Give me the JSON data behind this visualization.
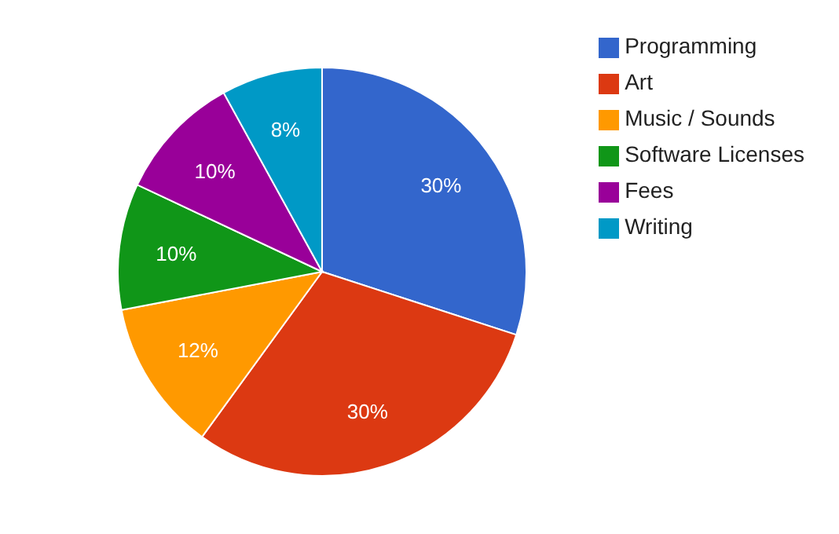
{
  "chart_data": {
    "type": "pie",
    "categories": [
      "Programming",
      "Art",
      "Music / Sounds",
      "Software Licenses",
      "Fees",
      "Writing"
    ],
    "values": [
      30,
      30,
      12,
      10,
      10,
      8
    ],
    "colors": [
      "#3366cc",
      "#dc3912",
      "#ff9900",
      "#109618",
      "#990099",
      "#0099c6"
    ],
    "value_labels": [
      "30%",
      "30%",
      "12%",
      "10%",
      "10%",
      "8%"
    ],
    "legend": "top right"
  }
}
